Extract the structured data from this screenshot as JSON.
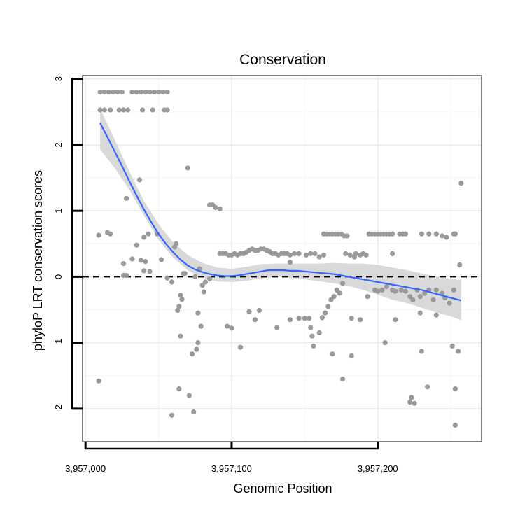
{
  "chart_data": {
    "type": "scatter",
    "title": "Conservation",
    "xlabel": "Genomic Position",
    "ylabel": "phyloP LRT conservation scores",
    "xlim": [
      3956998,
      3957271
    ],
    "ylim": [
      -2.5,
      3.05
    ],
    "x_ticks": [
      3957000,
      3957100,
      3957200
    ],
    "x_tick_labels": [
      "3,957,000",
      "3,957,100",
      "3,957,200"
    ],
    "y_ticks": [
      -2,
      -1,
      0,
      1,
      2,
      3
    ],
    "y_tick_labels": [
      "-2",
      "-1",
      "0",
      "1",
      "2",
      "3"
    ],
    "grid": true,
    "reference_line": {
      "y": 0,
      "style": "dashed",
      "color": "#000000"
    },
    "point_color": "#999999",
    "smooth_color": "#3366ff",
    "band_color": "#d9d9d9",
    "series": [
      {
        "name": "scores",
        "points": [
          [
            3957010,
            2.8
          ],
          [
            3957013,
            2.8
          ],
          [
            3957016,
            2.8
          ],
          [
            3957019,
            2.8
          ],
          [
            3957022,
            2.8
          ],
          [
            3957025,
            2.8
          ],
          [
            3957032,
            2.8
          ],
          [
            3957035,
            2.8
          ],
          [
            3957038,
            2.8
          ],
          [
            3957041,
            2.8
          ],
          [
            3957044,
            2.8
          ],
          [
            3957047,
            2.8
          ],
          [
            3957050,
            2.8
          ],
          [
            3957053,
            2.8
          ],
          [
            3957056,
            2.8
          ],
          [
            3957010,
            2.53
          ],
          [
            3957013,
            2.53
          ],
          [
            3957017,
            2.53
          ],
          [
            3957023,
            2.53
          ],
          [
            3957026,
            2.53
          ],
          [
            3957029,
            2.53
          ],
          [
            3957039,
            2.53
          ],
          [
            3957046,
            2.53
          ],
          [
            3957054,
            2.53
          ],
          [
            3957056,
            2.53
          ],
          [
            3957070,
            1.65
          ],
          [
            3957037,
            1.47
          ],
          [
            3957028,
            1.19
          ],
          [
            3957085,
            1.09
          ],
          [
            3957087,
            1.09
          ],
          [
            3957089,
            1.05
          ],
          [
            3957092,
            1.03
          ],
          [
            3957009,
            0.63
          ],
          [
            3957015,
            0.67
          ],
          [
            3957017,
            0.65
          ],
          [
            3957043,
            0.65
          ],
          [
            3957049,
            0.65
          ],
          [
            3957040,
            0.6
          ],
          [
            3957035,
            0.48
          ],
          [
            3957062,
            0.5
          ],
          [
            3957061,
            0.45
          ],
          [
            3957038,
            0.25
          ],
          [
            3957041,
            0.23
          ],
          [
            3957032,
            0.27
          ],
          [
            3957026,
            0.2
          ],
          [
            3957052,
            0.26
          ],
          [
            3957040,
            0.09
          ],
          [
            3957044,
            0.08
          ],
          [
            3957026,
            0.02
          ],
          [
            3957028,
            0.02
          ],
          [
            3957056,
            -0.02
          ],
          [
            3957059,
            -0.08
          ],
          [
            3957067,
            0.05
          ],
          [
            3957068,
            0.05
          ],
          [
            3957075,
            0.0
          ],
          [
            3957078,
            0.12
          ],
          [
            3957080,
            -0.13
          ],
          [
            3957081,
            -0.23
          ],
          [
            3957082,
            -0.08
          ],
          [
            3957085,
            -0.03
          ],
          [
            3957065,
            -0.28
          ],
          [
            3957066,
            -0.34
          ],
          [
            3957064,
            -0.45
          ],
          [
            3957063,
            -0.51
          ],
          [
            3957077,
            -0.55
          ],
          [
            3957079,
            -0.75
          ],
          [
            3957065,
            -0.9
          ],
          [
            3957077,
            -1.0
          ],
          [
            3957076,
            -1.1
          ],
          [
            3957073,
            -1.17
          ],
          [
            3957009,
            -1.58
          ],
          [
            3957064,
            -1.7
          ],
          [
            3957071,
            -1.8
          ],
          [
            3957059,
            -2.1
          ],
          [
            3957074,
            -2.05
          ],
          [
            3957092,
            0.35
          ],
          [
            3957094,
            0.35
          ],
          [
            3957096,
            0.35
          ],
          [
            3957098,
            0.33
          ],
          [
            3957100,
            0.33
          ],
          [
            3957102,
            0.35
          ],
          [
            3957104,
            0.33
          ],
          [
            3957106,
            0.35
          ],
          [
            3957108,
            0.35
          ],
          [
            3957110,
            0.37
          ],
          [
            3957112,
            0.4
          ],
          [
            3957114,
            0.42
          ],
          [
            3957116,
            0.4
          ],
          [
            3957118,
            0.4
          ],
          [
            3957120,
            0.42
          ],
          [
            3957122,
            0.42
          ],
          [
            3957124,
            0.4
          ],
          [
            3957126,
            0.38
          ],
          [
            3957128,
            0.35
          ],
          [
            3957130,
            0.35
          ],
          [
            3957132,
            0.33
          ],
          [
            3957134,
            0.35
          ],
          [
            3957136,
            0.35
          ],
          [
            3957138,
            0.35
          ],
          [
            3957140,
            0.33
          ],
          [
            3957143,
            0.35
          ],
          [
            3957146,
            0.35
          ],
          [
            3957151,
            0.33
          ],
          [
            3957154,
            0.35
          ],
          [
            3957157,
            0.35
          ],
          [
            3957160,
            0.3
          ],
          [
            3957163,
            0.33
          ],
          [
            3957140,
            0.22
          ],
          [
            3957100,
            -0.78
          ],
          [
            3957097,
            -0.75
          ],
          [
            3957106,
            -1.07
          ],
          [
            3957112,
            -0.53
          ],
          [
            3957116,
            -0.65
          ],
          [
            3957119,
            -0.51
          ],
          [
            3957131,
            -0.77
          ],
          [
            3957140,
            -0.65
          ],
          [
            3957146,
            -0.63
          ],
          [
            3957150,
            -0.63
          ],
          [
            3957153,
            -0.63
          ],
          [
            3957154,
            -0.77
          ],
          [
            3957155,
            -0.9
          ],
          [
            3957156,
            -1.05
          ],
          [
            3957160,
            -0.85
          ],
          [
            3957162,
            -0.62
          ],
          [
            3957164,
            -0.55
          ],
          [
            3957166,
            -0.45
          ],
          [
            3957168,
            -0.35
          ],
          [
            3957170,
            -0.3
          ],
          [
            3957172,
            -0.2
          ],
          [
            3957174,
            -0.25
          ],
          [
            3957176,
            -0.1
          ],
          [
            3957182,
            -0.63
          ],
          [
            3957169,
            -1.17
          ],
          [
            3957176,
            -1.55
          ],
          [
            3957182,
            -1.2
          ],
          [
            3957188,
            -0.65
          ],
          [
            3957163,
            0.65
          ],
          [
            3957165,
            0.65
          ],
          [
            3957167,
            0.65
          ],
          [
            3957169,
            0.65
          ],
          [
            3957171,
            0.65
          ],
          [
            3957173,
            0.65
          ],
          [
            3957175,
            0.65
          ],
          [
            3957177,
            0.62
          ],
          [
            3957179,
            0.62
          ],
          [
            3957178,
            0.35
          ],
          [
            3957181,
            0.33
          ],
          [
            3957185,
            0.35
          ],
          [
            3957188,
            0.33
          ],
          [
            3957190,
            0.35
          ],
          [
            3957192,
            0.33
          ],
          [
            3957184,
            0.3
          ],
          [
            3957194,
            0.65
          ],
          [
            3957196,
            0.65
          ],
          [
            3957198,
            0.65
          ],
          [
            3957200,
            0.65
          ],
          [
            3957202,
            0.65
          ],
          [
            3957204,
            0.65
          ],
          [
            3957206,
            0.65
          ],
          [
            3957208,
            0.65
          ],
          [
            3957210,
            0.65
          ],
          [
            3957215,
            0.65
          ],
          [
            3957217,
            0.65
          ],
          [
            3957219,
            0.65
          ],
          [
            3957230,
            0.65
          ],
          [
            3957235,
            0.65
          ],
          [
            3957240,
            0.65
          ],
          [
            3957244,
            0.62
          ],
          [
            3957247,
            0.6
          ],
          [
            3957252,
            0.65
          ],
          [
            3957253,
            0.65
          ],
          [
            3957210,
            0.35
          ],
          [
            3957193,
            -0.3
          ],
          [
            3957198,
            -0.2
          ],
          [
            3957200,
            -0.22
          ],
          [
            3957203,
            -0.2
          ],
          [
            3957206,
            -0.15
          ],
          [
            3957210,
            -0.2
          ],
          [
            3957212,
            -0.22
          ],
          [
            3957216,
            -0.2
          ],
          [
            3957219,
            -0.22
          ],
          [
            3957222,
            -0.3
          ],
          [
            3957224,
            -0.35
          ],
          [
            3957227,
            -0.2
          ],
          [
            3957229,
            -0.3
          ],
          [
            3957232,
            -0.25
          ],
          [
            3957235,
            -0.2
          ],
          [
            3957238,
            -0.35
          ],
          [
            3957240,
            -0.2
          ],
          [
            3957244,
            -0.25
          ],
          [
            3957246,
            -0.32
          ],
          [
            3957249,
            -0.4
          ],
          [
            3957252,
            -0.2
          ],
          [
            3957212,
            -0.65
          ],
          [
            3957229,
            -0.55
          ],
          [
            3957240,
            -0.58
          ],
          [
            3957205,
            -1.0
          ],
          [
            3957230,
            -1.13
          ],
          [
            3957222,
            -1.9
          ],
          [
            3957223,
            -1.83
          ],
          [
            3957225,
            -1.92
          ],
          [
            3957234,
            -1.67
          ],
          [
            3957251,
            -1.05
          ],
          [
            3957255,
            -1.13
          ],
          [
            3957253,
            -1.7
          ],
          [
            3957253,
            -2.25
          ],
          [
            3957256,
            0.18
          ],
          [
            3957257,
            1.42
          ]
        ]
      },
      {
        "name": "smooth",
        "points": [
          [
            3957010,
            2.33
          ],
          [
            3957015,
            2.12
          ],
          [
            3957020,
            1.9
          ],
          [
            3957025,
            1.68
          ],
          [
            3957030,
            1.45
          ],
          [
            3957035,
            1.23
          ],
          [
            3957040,
            1.02
          ],
          [
            3957045,
            0.83
          ],
          [
            3957050,
            0.65
          ],
          [
            3957055,
            0.5
          ],
          [
            3957060,
            0.37
          ],
          [
            3957065,
            0.26
          ],
          [
            3957070,
            0.17
          ],
          [
            3957075,
            0.11
          ],
          [
            3957080,
            0.07
          ],
          [
            3957085,
            0.04
          ],
          [
            3957090,
            0.02
          ],
          [
            3957095,
            0.01
          ],
          [
            3957100,
            0.01
          ],
          [
            3957105,
            0.02
          ],
          [
            3957110,
            0.04
          ],
          [
            3957115,
            0.06
          ],
          [
            3957120,
            0.08
          ],
          [
            3957125,
            0.1
          ],
          [
            3957130,
            0.1
          ],
          [
            3957135,
            0.1
          ],
          [
            3957140,
            0.09
          ],
          [
            3957145,
            0.09
          ],
          [
            3957150,
            0.08
          ],
          [
            3957155,
            0.07
          ],
          [
            3957160,
            0.06
          ],
          [
            3957165,
            0.05
          ],
          [
            3957170,
            0.04
          ],
          [
            3957175,
            0.02
          ],
          [
            3957180,
            0.0
          ],
          [
            3957185,
            -0.02
          ],
          [
            3957190,
            -0.04
          ],
          [
            3957195,
            -0.06
          ],
          [
            3957200,
            -0.08
          ],
          [
            3957205,
            -0.1
          ],
          [
            3957210,
            -0.12
          ],
          [
            3957215,
            -0.14
          ],
          [
            3957220,
            -0.16
          ],
          [
            3957225,
            -0.18
          ],
          [
            3957230,
            -0.2
          ],
          [
            3957235,
            -0.23
          ],
          [
            3957240,
            -0.26
          ],
          [
            3957245,
            -0.29
          ],
          [
            3957250,
            -0.32
          ],
          [
            3957257,
            -0.36
          ]
        ]
      },
      {
        "name": "confidence-band",
        "x": [
          3957010,
          3957020,
          3957030,
          3957040,
          3957050,
          3957060,
          3957070,
          3957080,
          3957090,
          3957100,
          3957110,
          3957120,
          3957130,
          3957140,
          3957150,
          3957160,
          3957170,
          3957180,
          3957190,
          3957200,
          3957210,
          3957220,
          3957230,
          3957240,
          3957250,
          3957257
        ],
        "upper": [
          2.55,
          2.08,
          1.6,
          1.15,
          0.8,
          0.52,
          0.33,
          0.21,
          0.14,
          0.12,
          0.15,
          0.19,
          0.2,
          0.2,
          0.2,
          0.2,
          0.21,
          0.2,
          0.2,
          0.18,
          0.14,
          0.1,
          0.05,
          0.0,
          -0.03,
          -0.05
        ],
        "lower": [
          1.93,
          1.65,
          1.32,
          0.93,
          0.56,
          0.29,
          0.1,
          -0.02,
          -0.07,
          -0.08,
          -0.06,
          -0.03,
          0.0,
          -0.02,
          -0.04,
          -0.07,
          -0.1,
          -0.14,
          -0.2,
          -0.27,
          -0.35,
          -0.4,
          -0.47,
          -0.54,
          -0.6,
          -0.66
        ]
      }
    ]
  }
}
